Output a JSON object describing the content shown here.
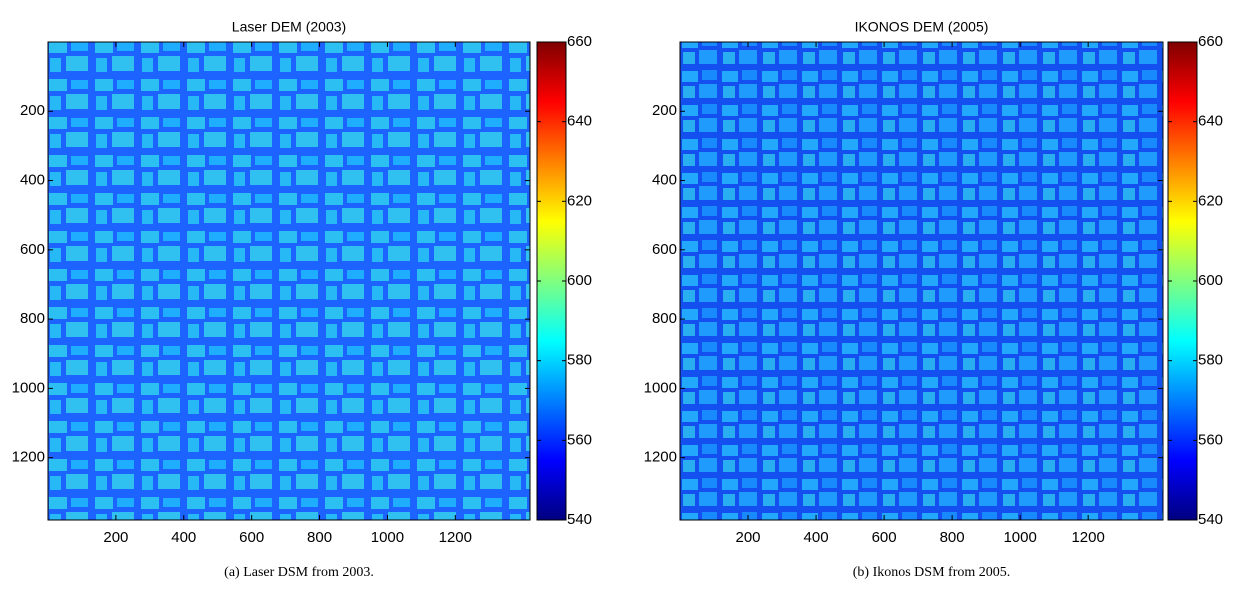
{
  "chart_data": [
    {
      "type": "heatmap",
      "title": "Laser DEM (2003)",
      "caption": "(a) Laser DSM from 2003.",
      "xlim": [
        0,
        1420
      ],
      "xticks": [
        200,
        400,
        600,
        800,
        1000,
        1200
      ],
      "ylim": [
        0,
        1380
      ],
      "y_reversed": true,
      "yticks": [
        200,
        400,
        600,
        800,
        1000,
        1200
      ],
      "colormap": "jet",
      "clim": [
        540,
        660
      ],
      "cticks": [
        540,
        560,
        580,
        600,
        620,
        640,
        660
      ]
    },
    {
      "type": "heatmap",
      "title": "IKONOS DEM (2005)",
      "caption": "(b) Ikonos DSM from 2005.",
      "xlim": [
        0,
        1420
      ],
      "xticks": [
        200,
        400,
        600,
        800,
        1000,
        1200
      ],
      "ylim": [
        0,
        1380
      ],
      "y_reversed": true,
      "yticks": [
        200,
        400,
        600,
        800,
        1000,
        1200
      ],
      "colormap": "jet",
      "clim": [
        540,
        660
      ],
      "cticks": [
        540,
        560,
        580,
        600,
        620,
        640,
        660
      ]
    }
  ]
}
